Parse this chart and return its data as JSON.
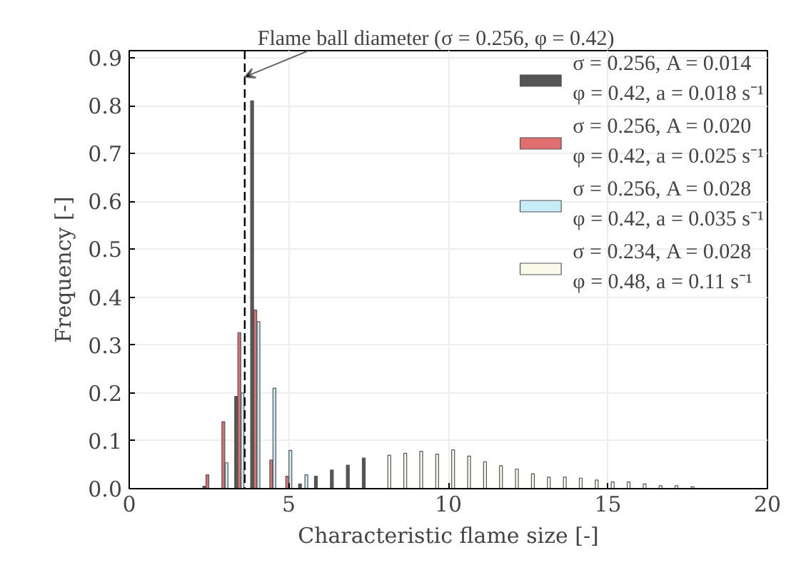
{
  "chart_data": {
    "type": "bar",
    "xlabel": "Characteristic flame size [-]",
    "ylabel": "Frequency [-]",
    "xlim": [
      0,
      20
    ],
    "xticks": [
      0,
      5,
      10,
      15,
      20
    ],
    "ylim": [
      0,
      0.915
    ],
    "yticks": [
      {
        "value": 0,
        "label": "0.0"
      },
      0.1,
      0.2,
      0.3,
      0.4,
      0.5,
      0.6,
      0.7,
      0.8,
      0.9
    ],
    "grid": true,
    "legend": "top right",
    "series": [
      {
        "name": "σ = 0.256, A = 0.014\nφ = 0.42, a = 0.018 s⁻¹",
        "color": "#555555",
        "x": [
          2.5,
          3.5,
          4.0,
          5.5,
          6.0,
          6.5,
          7.0,
          7.5
        ],
        "values": [
          0.005,
          0.193,
          0.81,
          0.01,
          0.026,
          0.039,
          0.049,
          0.064
        ]
      },
      {
        "name": "σ = 0.256, A = 0.020\nφ = 0.42, a = 0.025 s⁻¹",
        "color": "#e07070",
        "x": [
          2.5,
          3.0,
          3.5,
          4.0,
          4.5,
          5.0
        ],
        "values": [
          0.029,
          0.14,
          0.326,
          0.373,
          0.06,
          0.026
        ]
      },
      {
        "name": "σ = 0.256, A = 0.028\nφ = 0.42, a = 0.035 s⁻¹",
        "color": "#c8ecf8",
        "x": [
          3.0,
          3.5,
          4.0,
          4.5,
          5.0,
          5.5
        ],
        "values": [
          0.054,
          0.2,
          0.349,
          0.21,
          0.08,
          0.029
        ]
      },
      {
        "name": "σ = 0.234, A = 0.028\nφ = 0.48, a = 0.11 s⁻¹",
        "color": "#fafaea",
        "x": [
          8.0,
          8.5,
          9.0,
          9.5,
          10.0,
          10.5,
          11.0,
          11.5,
          12.0,
          12.5,
          13.0,
          13.5,
          14.0,
          14.5,
          15.0,
          15.5,
          16.0,
          16.5,
          17.0,
          17.5
        ],
        "values": [
          0.07,
          0.074,
          0.078,
          0.072,
          0.081,
          0.068,
          0.056,
          0.048,
          0.041,
          0.031,
          0.024,
          0.024,
          0.022,
          0.018,
          0.014,
          0.014,
          0.01,
          0.006,
          0.006,
          0.004
        ]
      }
    ],
    "annotations": [
      {
        "text": "Flame ball diameter (σ = 0.256, φ = 0.42)",
        "x": 3.62,
        "y": 0.86
      }
    ],
    "ref_lines": [
      {
        "axis": "x",
        "value": 3.62,
        "line_style": "dashed",
        "color": "#000000"
      }
    ]
  }
}
